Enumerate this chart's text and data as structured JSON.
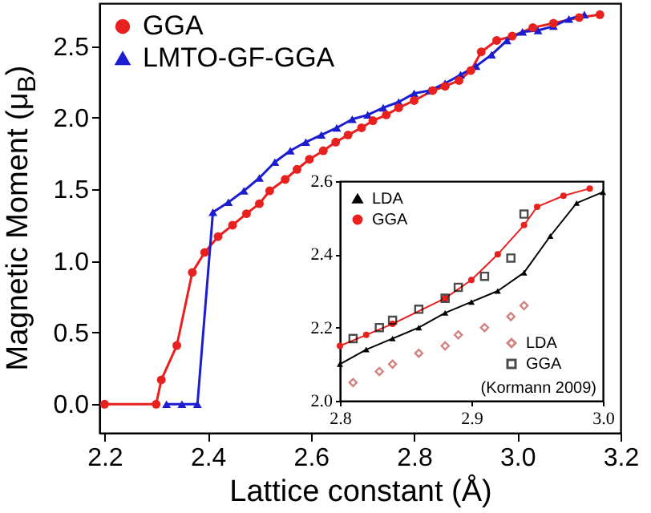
{
  "chart_data": [
    {
      "type": "line",
      "xlabel": "Lattice constant (Å)",
      "ylabel": "Magnetic Moment (μ$_{B}$)",
      "xlim": [
        2.19,
        3.2
      ],
      "xticks": [
        2.2,
        2.4,
        2.6,
        2.8,
        {
          "value": 3,
          "label": "3.0"
        },
        3.2
      ],
      "ylim": [
        -0.2,
        2.8
      ],
      "yticks": [
        {
          "value": 0,
          "label": "0.0"
        },
        0.5,
        {
          "value": 1,
          "label": "1.0"
        },
        1.5,
        {
          "value": 2,
          "label": "2.0"
        },
        2.5
      ],
      "grid": false,
      "legend": "top left",
      "series": [
        {
          "name": "GGA",
          "color": "#e8201e",
          "marker": "circle",
          "x": [
            2.2,
            2.3,
            2.31,
            2.34,
            2.37,
            2.394,
            2.42,
            2.448,
            2.475,
            2.5,
            2.52,
            2.55,
            2.573,
            2.597,
            2.624,
            2.648,
            2.672,
            2.698,
            2.72,
            2.746,
            2.77,
            2.8,
            2.836,
            2.86,
            2.887,
            2.91,
            2.93,
            2.96,
            2.99,
            3.03,
            3.07,
            3.12,
            3.16
          ],
          "values": [
            0,
            0,
            0.17,
            0.41,
            0.92,
            1.06,
            1.17,
            1.25,
            1.33,
            1.4,
            1.49,
            1.57,
            1.64,
            1.71,
            1.77,
            1.83,
            1.88,
            1.93,
            1.98,
            2.02,
            2.07,
            2.12,
            2.19,
            2.22,
            2.26,
            2.33,
            2.46,
            2.54,
            2.57,
            2.63,
            2.66,
            2.7,
            2.72
          ]
        },
        {
          "name": "LMTO-GF-GGA",
          "color": "#1c1cd0",
          "marker": "triangle",
          "x": [
            2.32,
            2.35,
            2.38,
            2.41,
            2.44,
            2.47,
            2.5,
            2.53,
            2.56,
            2.59,
            2.62,
            2.65,
            2.68,
            2.71,
            2.74,
            2.77,
            2.8,
            2.83,
            2.86,
            2.89,
            2.92,
            2.95,
            2.98,
            3.01,
            3.04,
            3.07,
            3.1,
            3.13
          ],
          "values": [
            0,
            0,
            0,
            1.34,
            1.41,
            1.49,
            1.58,
            1.69,
            1.77,
            1.83,
            1.88,
            1.93,
            1.99,
            2.02,
            2.07,
            2.11,
            2.17,
            2.19,
            2.24,
            2.3,
            2.36,
            2.44,
            2.54,
            2.6,
            2.61,
            2.64,
            2.69,
            2.72
          ]
        }
      ]
    },
    {
      "type": "line",
      "xlim": [
        2.8,
        3.0
      ],
      "xticks": [
        2.8,
        2.9,
        {
          "value": 3,
          "label": "3.0"
        }
      ],
      "ylim": [
        2.0,
        2.6
      ],
      "yticks": [
        {
          "value": 2,
          "label": "2.0"
        },
        2.2,
        2.4,
        2.6
      ],
      "grid": false,
      "legend": "top left",
      "annotations": [
        "(Kormann 2009)"
      ],
      "series": [
        {
          "name": "LDA",
          "color": "#000000",
          "marker": "triangle",
          "x": [
            2.8,
            2.82,
            2.84,
            2.86,
            2.88,
            2.9,
            2.92,
            2.94,
            2.96,
            2.98,
            3.0
          ],
          "values": [
            2.1,
            2.14,
            2.17,
            2.2,
            2.24,
            2.27,
            2.3,
            2.35,
            2.45,
            2.54,
            2.57
          ]
        },
        {
          "name": "GGA",
          "color": "#e8201e",
          "marker": "circle",
          "x": [
            2.8,
            2.82,
            2.84,
            2.88,
            2.9,
            2.92,
            2.94,
            2.95,
            2.97,
            2.99
          ],
          "values": [
            2.15,
            2.18,
            2.21,
            2.28,
            2.33,
            2.4,
            2.48,
            2.53,
            2.56,
            2.58
          ]
        },
        {
          "type": "scatter",
          "name": "LDA",
          "color": "#c0504d",
          "marker": "diamond",
          "x": [
            2.81,
            2.83,
            2.84,
            2.86,
            2.88,
            2.89,
            2.91,
            2.93,
            2.94
          ],
          "values": [
            2.05,
            2.08,
            2.1,
            2.13,
            2.15,
            2.18,
            2.2,
            2.23,
            2.26
          ]
        },
        {
          "type": "scatter",
          "name": "GGA",
          "color": "#000000",
          "marker": "square",
          "x": [
            2.81,
            2.83,
            2.84,
            2.86,
            2.88,
            2.89,
            2.91,
            2.93,
            2.94
          ],
          "values": [
            2.17,
            2.2,
            2.22,
            2.25,
            2.28,
            2.31,
            2.34,
            2.39,
            2.51
          ]
        }
      ]
    }
  ]
}
